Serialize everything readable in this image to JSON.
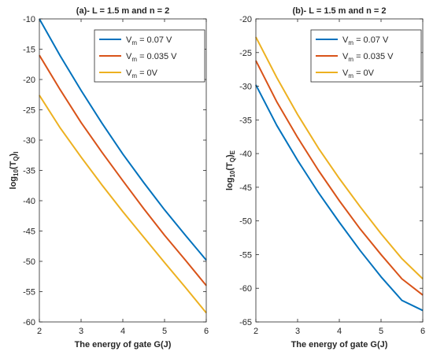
{
  "chart_data": [
    {
      "type": "line",
      "title": "(a)- L = 1.5 m and n = 2",
      "xlabel": "The energy of gate G(J)",
      "ylabel": {
        "base": "log",
        "base_sub": "10",
        "body": "(T",
        "sub1": "Q",
        "close": ")",
        "sub2": "I"
      },
      "xlim": [
        2,
        6
      ],
      "ylim": [
        -60,
        -10
      ],
      "xticks": [
        2,
        3,
        4,
        5,
        6
      ],
      "yticks": [
        -10,
        -15,
        -20,
        -25,
        -30,
        -35,
        -40,
        -45,
        -50,
        -55,
        -60
      ],
      "grid": false,
      "legend_position": "top-right",
      "x": [
        2,
        2.5,
        3,
        3.5,
        4,
        4.5,
        5,
        5.5,
        6
      ],
      "series": [
        {
          "name": {
            "pre": "V",
            "sub": "m",
            "post": " = 0.07 V"
          },
          "color": "#0072BD",
          "values": [
            -10.0,
            -16.1,
            -21.8,
            -27.2,
            -32.3,
            -37.0,
            -41.5,
            -45.7,
            -49.8
          ]
        },
        {
          "name": {
            "pre": "V",
            "sub": "m",
            "post": " = 0.035 V"
          },
          "color": "#D95319",
          "values": [
            -16.0,
            -21.7,
            -27.1,
            -32.0,
            -36.7,
            -41.3,
            -45.7,
            -49.8,
            -54.0
          ]
        },
        {
          "name": {
            "pre": "V",
            "sub": "m",
            "post": " = 0V"
          },
          "color": "#EDB120",
          "values": [
            -22.6,
            -28.0,
            -32.8,
            -37.4,
            -41.8,
            -46.0,
            -50.2,
            -54.3,
            -58.5
          ]
        }
      ]
    },
    {
      "type": "line",
      "title": "(b)- L = 1.5 m and n = 2",
      "xlabel": "The energy of gate G(J)",
      "ylabel": {
        "base": "log",
        "base_sub": "10",
        "body": "(T",
        "sub1": "Q",
        "close": ")",
        "sub2": "E"
      },
      "xlim": [
        2,
        6
      ],
      "ylim": [
        -65,
        -20
      ],
      "xticks": [
        2,
        3,
        4,
        5,
        6
      ],
      "yticks": [
        -20,
        -25,
        -30,
        -35,
        -40,
        -45,
        -50,
        -55,
        -60,
        -65
      ],
      "grid": false,
      "legend_position": "top-right",
      "x": [
        2,
        2.5,
        3,
        3.5,
        4,
        4.5,
        5,
        5.5,
        6
      ],
      "series": [
        {
          "name": {
            "pre": "V",
            "sub": "m",
            "post": " = 0.07 V"
          },
          "color": "#0072BD",
          "values": [
            -29.8,
            -35.8,
            -41.0,
            -45.8,
            -50.2,
            -54.4,
            -58.3,
            -61.8,
            -63.3
          ]
        },
        {
          "name": {
            "pre": "V",
            "sub": "m",
            "post": " = 0.035 V"
          },
          "color": "#D95319",
          "values": [
            -26.2,
            -32.3,
            -37.6,
            -42.5,
            -47.0,
            -51.2,
            -55.0,
            -58.6,
            -61.0
          ]
        },
        {
          "name": {
            "pre": "V",
            "sub": "m",
            "post": " = 0V"
          },
          "color": "#EDB120",
          "values": [
            -22.7,
            -28.7,
            -34.2,
            -39.2,
            -43.7,
            -47.9,
            -51.9,
            -55.6,
            -58.6
          ]
        }
      ]
    }
  ]
}
